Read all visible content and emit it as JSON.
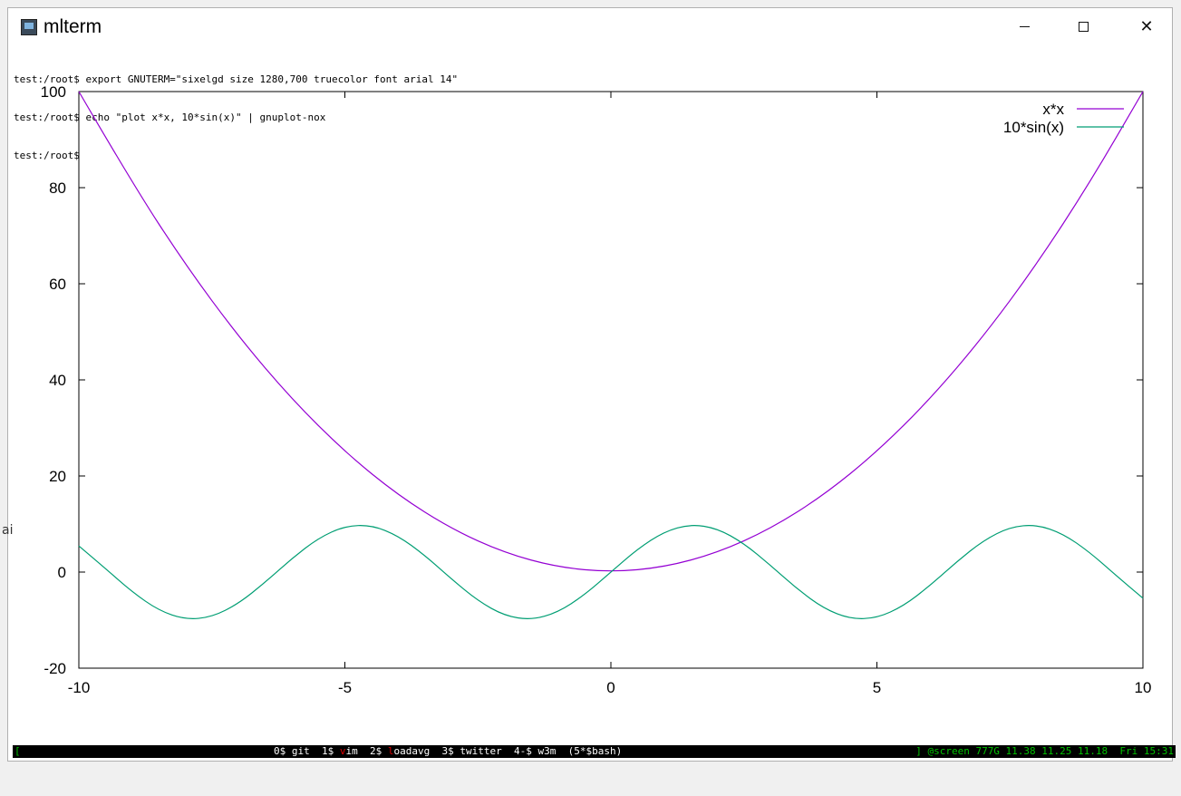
{
  "window": {
    "title": "mlterm",
    "icon": "terminal-icon"
  },
  "terminal": {
    "lines": [
      "test:/root$ export GNUTERM=\"sixelgd size 1280,700 truecolor font arial 14\"",
      "test:/root$ echo \"plot x*x, 10*sin(x)\" | gnuplot-nox",
      "test:/root$"
    ]
  },
  "chart_data": {
    "type": "line",
    "xlim": [
      -10,
      10
    ],
    "ylim": [
      -20,
      100
    ],
    "x_ticks": [
      "-10",
      "-5",
      "0",
      "5",
      "10"
    ],
    "y_ticks": [
      "-20",
      "0",
      "20",
      "40",
      "60",
      "80",
      "100"
    ],
    "legend_position": "top-right",
    "grid": false,
    "series": [
      {
        "name": "x*x",
        "color": "#9400d3",
        "x": [
          -10,
          -9,
          -8,
          -7,
          -6,
          -5,
          -4,
          -3,
          -2,
          -1,
          0,
          1,
          2,
          3,
          4,
          5,
          6,
          7,
          8,
          9,
          10
        ],
        "y": [
          100,
          81,
          64,
          49,
          36,
          25,
          16,
          9,
          4,
          1,
          0,
          1,
          4,
          9,
          16,
          25,
          36,
          49,
          64,
          81,
          100
        ]
      },
      {
        "name": "10*sin(x)",
        "color": "#009e73",
        "x": [
          -10,
          -9.5,
          -9,
          -8.5,
          -8,
          -7.5,
          -7,
          -6.5,
          -6,
          -5.5,
          -5,
          -4.5,
          -4,
          -3.5,
          -3,
          -2.5,
          -2,
          -1.5,
          -1,
          -0.5,
          0,
          0.5,
          1,
          1.5,
          2,
          2.5,
          3,
          3.5,
          4,
          4.5,
          5,
          5.5,
          6,
          6.5,
          7,
          7.5,
          8,
          8.5,
          9,
          9.5,
          10
        ],
        "y": [
          5.44,
          0.75,
          -4.12,
          -7.98,
          -9.89,
          -9.38,
          -6.57,
          -2.15,
          2.79,
          7.06,
          9.59,
          9.78,
          7.57,
          3.51,
          -1.41,
          -5.98,
          -9.09,
          -9.97,
          -8.41,
          -4.79,
          0,
          4.79,
          8.41,
          9.97,
          9.09,
          5.98,
          1.41,
          -3.51,
          -7.57,
          -9.78,
          -9.59,
          -7.06,
          -2.79,
          2.15,
          6.57,
          9.38,
          9.89,
          7.98,
          4.12,
          -0.75,
          -5.44
        ]
      }
    ]
  },
  "statusbar": {
    "left": "[",
    "windows": [
      {
        "prefix": "0$ ",
        "name": "git",
        "accent": ""
      },
      {
        "prefix": "1$ ",
        "name": "im",
        "accent": "v"
      },
      {
        "prefix": "2$ ",
        "name": "oadavg",
        "accent": "l"
      },
      {
        "prefix": "3$ ",
        "name": "twitter",
        "accent": ""
      },
      {
        "prefix": "4-$ ",
        "name": "w3m",
        "accent": ""
      },
      {
        "prefix": "(5*$",
        "name": "bash)",
        "accent": ""
      }
    ],
    "right": "] @screen 777G 11.38 11.25 11.18  Fri 15:31"
  }
}
